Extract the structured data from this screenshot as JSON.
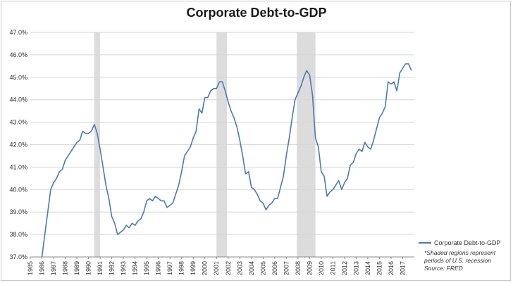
{
  "chart_data": {
    "type": "line",
    "title": "Corporate Debt-to-GDP",
    "xlabel": "",
    "ylabel": "",
    "ylim": [
      37.0,
      47.0
    ],
    "xlim": [
      1985,
      2018
    ],
    "y_ticks": [
      "37.0%",
      "38.0%",
      "39.0%",
      "40.0%",
      "41.0%",
      "42.0%",
      "43.0%",
      "44.0%",
      "45.0%",
      "46.0%",
      "47.0%"
    ],
    "x_ticks": [
      "1985",
      "1986",
      "1987",
      "1988",
      "1989",
      "1990",
      "1991",
      "1992",
      "1993",
      "1994",
      "1995",
      "1996",
      "1997",
      "1998",
      "1999",
      "2000",
      "2001",
      "2002",
      "2003",
      "2004",
      "2005",
      "2006",
      "2007",
      "2008",
      "2009",
      "2010",
      "2011",
      "2012",
      "2013",
      "2014",
      "2015",
      "2016",
      "2017"
    ],
    "grid": true,
    "legend_position": "right",
    "recessions": [
      [
        1990.5,
        1991.0
      ],
      [
        2001.0,
        2001.9
      ],
      [
        2007.9,
        2009.5
      ]
    ],
    "series": [
      {
        "name": "Corporate Debt-to-GDP",
        "color": "#4a7ab5",
        "points": [
          [
            1986.0,
            37.0
          ],
          [
            1986.25,
            38.0
          ],
          [
            1986.5,
            39.0
          ],
          [
            1986.75,
            40.0
          ],
          [
            1987.0,
            40.3
          ],
          [
            1987.25,
            40.5
          ],
          [
            1987.5,
            40.8
          ],
          [
            1987.75,
            40.9
          ],
          [
            1988.0,
            41.3
          ],
          [
            1988.25,
            41.5
          ],
          [
            1988.5,
            41.7
          ],
          [
            1988.75,
            41.9
          ],
          [
            1989.0,
            42.1
          ],
          [
            1989.25,
            42.2
          ],
          [
            1989.5,
            42.6
          ],
          [
            1989.75,
            42.5
          ],
          [
            1990.0,
            42.5
          ],
          [
            1990.25,
            42.6
          ],
          [
            1990.5,
            42.9
          ],
          [
            1990.75,
            42.5
          ],
          [
            1991.0,
            41.8
          ],
          [
            1991.25,
            41.0
          ],
          [
            1991.5,
            40.2
          ],
          [
            1991.75,
            39.6
          ],
          [
            1992.0,
            38.8
          ],
          [
            1992.25,
            38.5
          ],
          [
            1992.5,
            38.0
          ],
          [
            1992.75,
            38.1
          ],
          [
            1993.0,
            38.2
          ],
          [
            1993.25,
            38.4
          ],
          [
            1993.5,
            38.3
          ],
          [
            1993.75,
            38.5
          ],
          [
            1994.0,
            38.4
          ],
          [
            1994.25,
            38.6
          ],
          [
            1994.5,
            38.7
          ],
          [
            1994.75,
            39.0
          ],
          [
            1995.0,
            39.5
          ],
          [
            1995.25,
            39.6
          ],
          [
            1995.5,
            39.5
          ],
          [
            1995.75,
            39.7
          ],
          [
            1996.0,
            39.6
          ],
          [
            1996.25,
            39.5
          ],
          [
            1996.5,
            39.5
          ],
          [
            1996.75,
            39.2
          ],
          [
            1997.0,
            39.3
          ],
          [
            1997.25,
            39.4
          ],
          [
            1997.5,
            39.8
          ],
          [
            1997.75,
            40.2
          ],
          [
            1998.0,
            40.8
          ],
          [
            1998.25,
            41.5
          ],
          [
            1998.5,
            41.7
          ],
          [
            1998.75,
            41.9
          ],
          [
            1999.0,
            42.3
          ],
          [
            1999.25,
            42.6
          ],
          [
            1999.5,
            43.6
          ],
          [
            1999.75,
            43.4
          ],
          [
            2000.0,
            44.1
          ],
          [
            2000.25,
            44.1
          ],
          [
            2000.5,
            44.4
          ],
          [
            2000.75,
            44.5
          ],
          [
            2001.0,
            44.5
          ],
          [
            2001.25,
            44.8
          ],
          [
            2001.5,
            44.8
          ],
          [
            2001.75,
            44.4
          ],
          [
            2002.0,
            43.9
          ],
          [
            2002.25,
            43.5
          ],
          [
            2002.5,
            43.2
          ],
          [
            2002.75,
            42.8
          ],
          [
            2003.0,
            42.2
          ],
          [
            2003.25,
            41.5
          ],
          [
            2003.5,
            40.7
          ],
          [
            2003.75,
            40.8
          ],
          [
            2004.0,
            40.1
          ],
          [
            2004.25,
            40.0
          ],
          [
            2004.5,
            39.8
          ],
          [
            2004.75,
            39.5
          ],
          [
            2005.0,
            39.4
          ],
          [
            2005.25,
            39.1
          ],
          [
            2005.5,
            39.3
          ],
          [
            2005.75,
            39.4
          ],
          [
            2006.0,
            39.6
          ],
          [
            2006.25,
            39.6
          ],
          [
            2006.5,
            40.1
          ],
          [
            2006.75,
            40.6
          ],
          [
            2007.0,
            41.5
          ],
          [
            2007.25,
            42.3
          ],
          [
            2007.5,
            43.2
          ],
          [
            2007.75,
            44.0
          ],
          [
            2008.0,
            44.3
          ],
          [
            2008.25,
            44.6
          ],
          [
            2008.5,
            45.0
          ],
          [
            2008.75,
            45.3
          ],
          [
            2009.0,
            45.1
          ],
          [
            2009.25,
            44.2
          ],
          [
            2009.5,
            42.3
          ],
          [
            2009.75,
            41.9
          ],
          [
            2010.0,
            40.8
          ],
          [
            2010.25,
            40.6
          ],
          [
            2010.5,
            39.7
          ],
          [
            2010.75,
            39.9
          ],
          [
            2011.0,
            40.0
          ],
          [
            2011.25,
            40.2
          ],
          [
            2011.5,
            40.4
          ],
          [
            2011.75,
            40.0
          ],
          [
            2012.0,
            40.3
          ],
          [
            2012.25,
            40.5
          ],
          [
            2012.5,
            41.1
          ],
          [
            2012.75,
            41.2
          ],
          [
            2013.0,
            41.6
          ],
          [
            2013.25,
            41.8
          ],
          [
            2013.5,
            41.7
          ],
          [
            2013.75,
            42.1
          ],
          [
            2014.0,
            41.9
          ],
          [
            2014.25,
            41.8
          ],
          [
            2014.5,
            42.2
          ],
          [
            2014.75,
            42.7
          ],
          [
            2015.0,
            43.2
          ],
          [
            2015.25,
            43.4
          ],
          [
            2015.5,
            43.7
          ],
          [
            2015.75,
            44.8
          ],
          [
            2016.0,
            44.7
          ],
          [
            2016.25,
            44.8
          ],
          [
            2016.5,
            44.4
          ],
          [
            2016.75,
            45.2
          ],
          [
            2017.0,
            45.4
          ],
          [
            2017.25,
            45.6
          ],
          [
            2017.5,
            45.6
          ],
          [
            2017.75,
            45.3
          ]
        ]
      }
    ]
  },
  "legend": {
    "series_label": "Corporate Debt-to-GDP",
    "note_line1": "*Shaded regions represent",
    "note_line2": "periods of U.S. recession",
    "note_line3": "Source: FRED"
  }
}
